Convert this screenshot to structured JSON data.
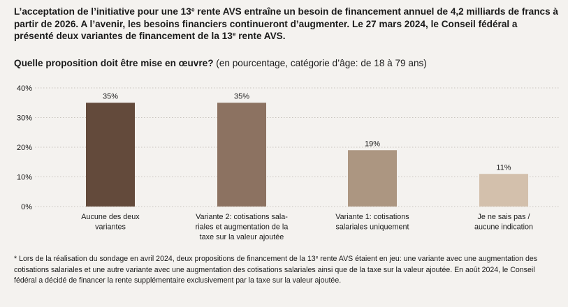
{
  "intro": {
    "part1": "L’acceptation de l’initiative pour une 13",
    "part1_sup": "e",
    "part2": " rente AVS entraîne un besoin de financement annuel de 4,2 milliards de francs à partir de 2026. A l’avenir, les besoins financiers continueront d’augmenter. Le 27 mars 2024, le Conseil fédéral a présenté deux variantes de financement de la 13",
    "part2_sup": "e",
    "part3": " rente AVS."
  },
  "question": {
    "bold": "Quelle proposition doit être mise en œuvre?",
    "normal": " (en pourcentage, catégorie d’âge: de 18 à 79 ans)"
  },
  "chart_data": {
    "type": "bar",
    "categories": [
      [
        "Aucune des deux",
        "variantes"
      ],
      [
        "Variante 2: cotisations sala-",
        "riales et augmentation de la",
        "taxe sur la valeur ajoutée"
      ],
      [
        "Variante 1: cotisations",
        "salariales uniquement"
      ],
      [
        "Je ne sais pas /",
        "aucune indication"
      ]
    ],
    "values": [
      35,
      35,
      19,
      11
    ],
    "value_labels": [
      "35%",
      "35%",
      "19%",
      "11%"
    ],
    "colors": [
      "#634a3b",
      "#8c7261",
      "#ac9681",
      "#d3c0ac"
    ],
    "ylim": [
      0,
      40
    ],
    "yticks": [
      0,
      10,
      20,
      30,
      40
    ],
    "ytick_labels": [
      "0%",
      "10%",
      "20%",
      "30%",
      "40%"
    ],
    "title": "Quelle proposition doit être mise en œuvre?",
    "xlabel": "",
    "ylabel": ""
  },
  "footnote": {
    "part1": "* Lors de la réalisation du sondage en avril 2024, deux propositions de financement de la 13",
    "part1_sup": "e",
    "part2": " rente AVS étaient en jeu: une variante avec une augmentation des cotisations salariales et une autre variante avec une augmentation des cotisations salariales ainsi que de la taxe sur la valeur ajoutée. En août 2024, le Conseil fédéral a décidé de financer la rente supplémentaire exclusivement par la taxe sur la valeur ajoutée."
  },
  "colors": {
    "background": "#f4f2ef",
    "text": "#1a1a1a",
    "grid": "#c9c4be"
  }
}
